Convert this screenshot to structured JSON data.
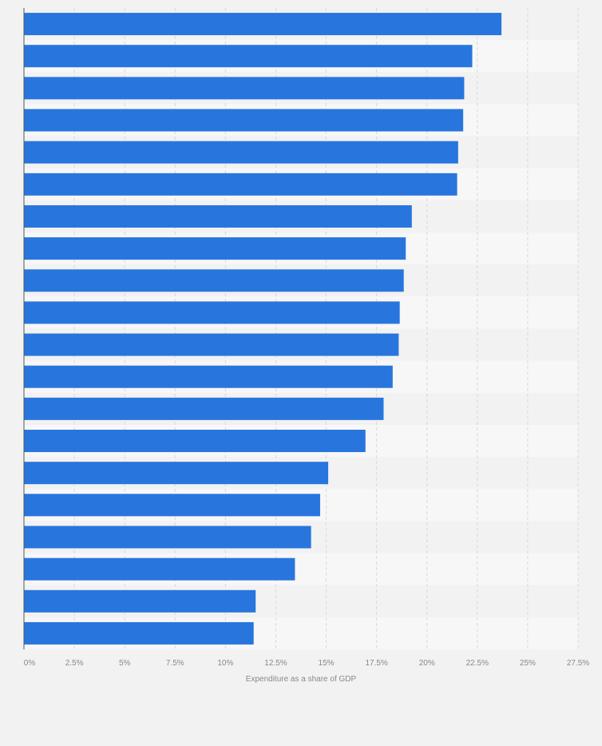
{
  "chart_data": {
    "type": "bar",
    "orientation": "horizontal",
    "title": "",
    "xlabel": "Expenditure as a share of GDP",
    "ylabel": "",
    "categories": [
      "",
      "",
      "",
      "",
      "",
      "",
      "",
      "",
      "",
      "",
      "",
      "",
      "",
      "",
      "",
      "",
      "",
      "",
      "",
      ""
    ],
    "values": [
      23.7,
      22.25,
      21.85,
      21.8,
      21.55,
      21.5,
      19.25,
      18.95,
      18.85,
      18.65,
      18.6,
      18.3,
      17.85,
      16.95,
      15.1,
      14.7,
      14.25,
      13.45,
      11.5,
      11.4
    ],
    "xlim": [
      0,
      27.5
    ],
    "xticks": [
      0,
      2.5,
      5,
      7.5,
      10,
      12.5,
      15,
      17.5,
      20,
      22.5,
      25,
      27.5
    ],
    "xtick_labels": [
      "0%",
      "2.5%",
      "5%",
      "7.5%",
      "10%",
      "12.5%",
      "15%",
      "17.5%",
      "20%",
      "22.5%",
      "25%",
      "27.5%"
    ],
    "grid": true,
    "legend": "none",
    "colors": {
      "bar": "#2876dd",
      "band_light": "#f7f7f7",
      "band_dark": "#f2f2f2",
      "grid": "#d9d9d9",
      "axis": "#555555",
      "tick_text": "#888888",
      "axis_label": "#888888"
    }
  }
}
